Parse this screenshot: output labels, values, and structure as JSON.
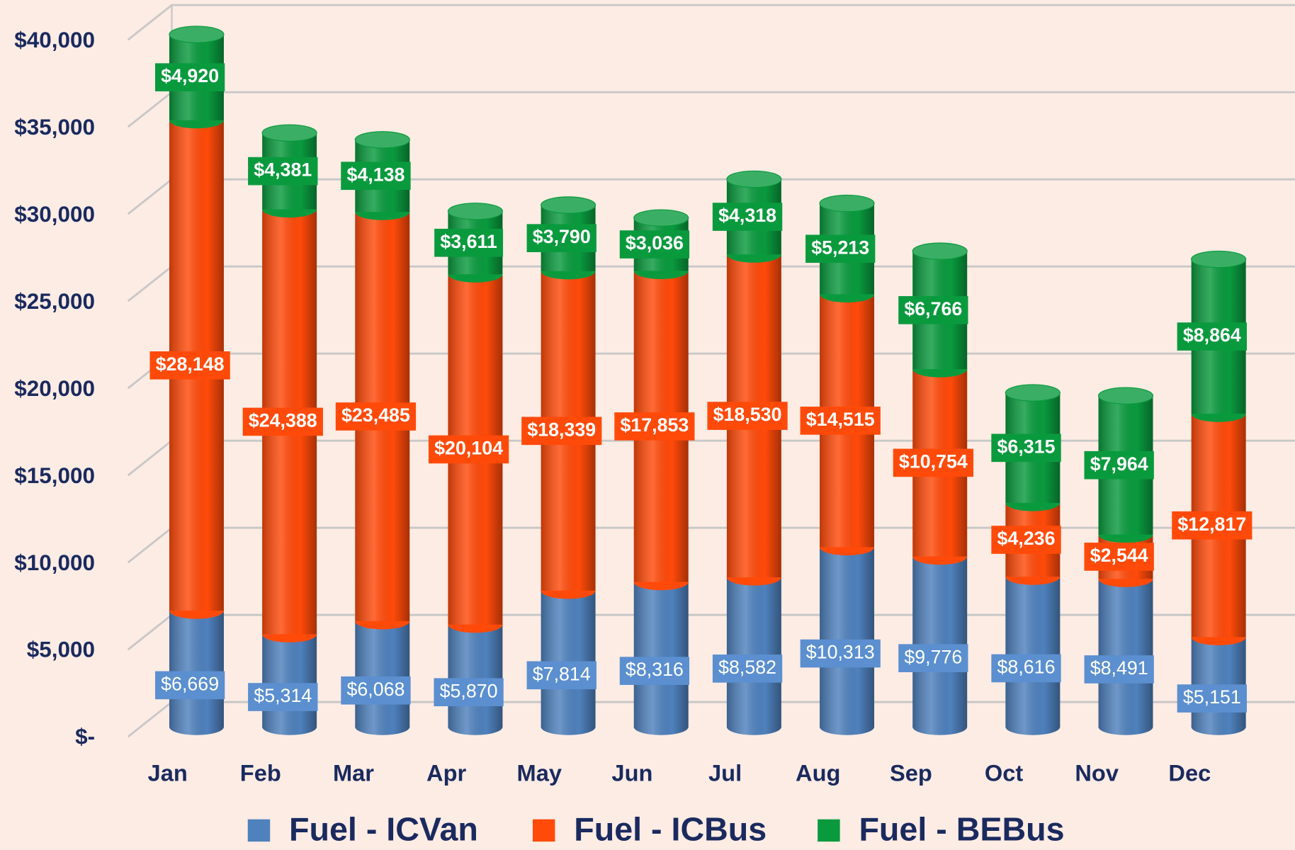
{
  "chart_data": {
    "type": "bar",
    "stacked": true,
    "categories": [
      "Jan",
      "Feb",
      "Mar",
      "Apr",
      "May",
      "Jun",
      "Jul",
      "Aug",
      "Sep",
      "Oct",
      "Nov",
      "Dec"
    ],
    "series": [
      {
        "name": "Fuel - ICVan",
        "color": "#4f81bd",
        "values": [
          6669,
          5314,
          6068,
          5870,
          7814,
          8316,
          8582,
          10313,
          9776,
          8616,
          8491,
          5151
        ],
        "value_labels": [
          "$6,669",
          "$5,314",
          "$6,068",
          "$5,870",
          "$7,814",
          "$8,316",
          "$8,582",
          "$10,313",
          "$9,776",
          "$8,616",
          "$8,491",
          "$5,151"
        ]
      },
      {
        "name": "Fuel - ICBus",
        "color": "#ff4a0a",
        "values": [
          28148,
          24388,
          23485,
          20104,
          18339,
          17853,
          18530,
          14515,
          10754,
          4236,
          2544,
          12817
        ],
        "value_labels": [
          "$28,148",
          "$24,388",
          "$23,485",
          "$20,104",
          "$18,339",
          "$17,853",
          "$18,530",
          "$14,515",
          "$10,754",
          "$4,236",
          "$2,544",
          "$12,817"
        ]
      },
      {
        "name": "Fuel - BEBus",
        "color": "#0a9a3e",
        "values": [
          4920,
          4381,
          4138,
          3611,
          3790,
          3036,
          4318,
          5213,
          6766,
          6315,
          7964,
          8864
        ],
        "value_labels": [
          "$4,920",
          "$4,381",
          "$4,138",
          "$3,611",
          "$3,790",
          "$3,036",
          "$4,318",
          "$5,213",
          "$6,766",
          "$6,315",
          "$7,964",
          "$8,864"
        ]
      }
    ],
    "ylim": [
      0,
      40000
    ],
    "yticks": [
      {
        "value": 0,
        "label": "$-"
      },
      {
        "value": 5000,
        "label": "$5,000"
      },
      {
        "value": 10000,
        "label": "$10,000"
      },
      {
        "value": 15000,
        "label": "$15,000"
      },
      {
        "value": 20000,
        "label": "$20,000"
      },
      {
        "value": 25000,
        "label": "$25,000"
      },
      {
        "value": 30000,
        "label": "$30,000"
      },
      {
        "value": 35000,
        "label": "$35,000"
      },
      {
        "value": 40000,
        "label": "$40,000"
      }
    ],
    "grid": true,
    "legend": "bottom"
  }
}
